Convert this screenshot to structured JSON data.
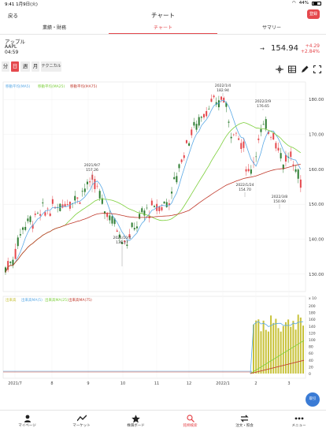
{
  "status_bar": {
    "time": "9:41",
    "date": "1月9日(火)",
    "battery": "44%"
  },
  "navbar": {
    "back_label": "戻る",
    "title": "チャート",
    "register_label": "登録"
  },
  "tabs": [
    {
      "label": "業績・財務",
      "active": false
    },
    {
      "label": "チャート",
      "active": true
    },
    {
      "label": "サマリー",
      "active": false
    }
  ],
  "stock": {
    "name": "アップル",
    "ticker": "AAPL",
    "time": "04:59",
    "price": "154.94",
    "change": "+4.29",
    "change_pct": "+2.84%"
  },
  "controls": {
    "buttons": [
      {
        "label": "分",
        "active": false
      },
      {
        "label": "日",
        "active": true
      },
      {
        "label": "週",
        "active": false
      },
      {
        "label": "月",
        "active": false
      },
      {
        "label": "テクニカル",
        "active": false
      }
    ],
    "icons": [
      "crosshair-icon",
      "table-icon",
      "pencil-icon",
      "fullscreen-icon"
    ]
  },
  "chart_data": {
    "type": "candlestick",
    "price_ylim": [
      125,
      185
    ],
    "price_ticks": [
      "180.00",
      "170.00",
      "160.00",
      "150.00",
      "140.00",
      "130.00"
    ],
    "ma_legend": [
      "移動平均(MA5)",
      "移動平均(MA25)",
      "移動平均(MA75)"
    ],
    "colors": {
      "up": "#e5484d",
      "down": "#2e7d32",
      "ma5": "#5aa9e6",
      "ma25": "#7ccf3a",
      "ma75": "#c0392b",
      "volume": "#c8c23a"
    },
    "x_labels": [
      "2021/7",
      "8",
      "9",
      "10",
      "11",
      "12",
      "2022/1",
      "2",
      "3"
    ],
    "annotations": [
      {
        "date": "2021/9/7",
        "price": "157.26"
      },
      {
        "date": "2021/10/4",
        "price": "138.27"
      },
      {
        "date": "2022/1/4",
        "price": "182.94"
      },
      {
        "date": "2022/1/24",
        "price": "154.70"
      },
      {
        "date": "2022/2/9",
        "price": "176.65"
      },
      {
        "date": "2022/3/8",
        "price": "150.90"
      }
    ],
    "volume_legend": [
      "出来高",
      "出来高MA(5)",
      "出来高MA(25)",
      "出来高MA(75)"
    ],
    "volume_unit": "x 10",
    "volume_ticks": [
      "200",
      "180",
      "160",
      "140",
      "120",
      "100",
      "80",
      "60",
      "40",
      "20",
      "0"
    ]
  },
  "bottom_nav": [
    {
      "label": "マイページ",
      "icon": "person-icon",
      "active": false
    },
    {
      "label": "マーケット",
      "icon": "market-icon",
      "active": false
    },
    {
      "label": "株価ボード",
      "icon": "star-icon",
      "active": false
    },
    {
      "label": "銘柄検索",
      "icon": "search-icon",
      "active": true
    },
    {
      "label": "注文・照会",
      "icon": "transfer-icon",
      "active": false
    },
    {
      "label": "メニュー",
      "icon": "dots-icon",
      "active": false
    }
  ],
  "fab_label": "取引"
}
